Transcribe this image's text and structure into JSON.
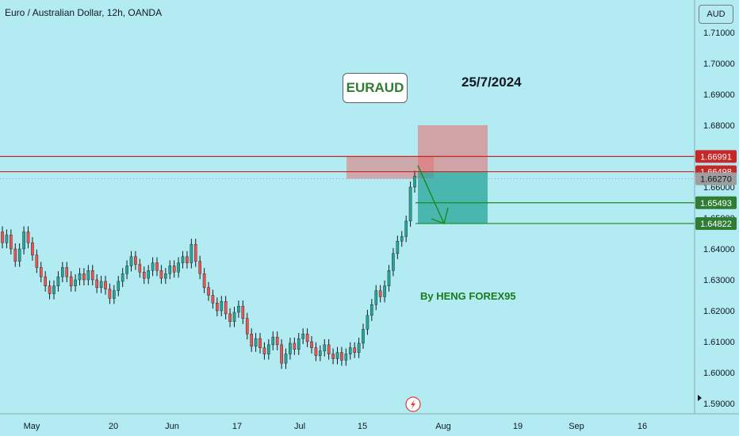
{
  "header": {
    "title": "Euro / Australian Dollar, 12h, OANDA"
  },
  "annotations": {
    "symbol_badge": "EURAUD",
    "date": "25/7/2024",
    "credit": "By HENG FOREX95"
  },
  "price_axis": {
    "currency": "AUD",
    "ticks": [
      "1.71000",
      "1.70000",
      "1.69000",
      "1.68000",
      "1.66000",
      "1.65000",
      "1.64000",
      "1.63000",
      "1.62000",
      "1.61000",
      "1.60000",
      "1.59000"
    ]
  },
  "time_axis": {
    "ticks": [
      "May",
      "20",
      "Jun",
      "17",
      "Jul",
      "15",
      "Aug",
      "19",
      "Sep",
      "16"
    ]
  },
  "colors": {
    "background": "#b2ebf2",
    "bull_candle": "#26a69a",
    "bear_candle": "#ef5350",
    "hline": "#c62828",
    "green_line": "#1b8a1e",
    "stop_zone": "#e57373",
    "target_zone": "#26a69a",
    "arrow": "#1b8a1e",
    "last_price": "#9e9e9e"
  },
  "chart_data": {
    "type": "candlestick",
    "symbol": "EURAUD",
    "timeframe": "12h",
    "source": "OANDA",
    "ylim": [
      1.5875,
      1.7175
    ],
    "candles_open_close": [
      [
        1.6455,
        1.642
      ],
      [
        1.642,
        1.6445
      ],
      [
        1.6445,
        1.64
      ],
      [
        1.64,
        1.636
      ],
      [
        1.636,
        1.64
      ],
      [
        1.64,
        1.6455
      ],
      [
        1.6455,
        1.642
      ],
      [
        1.642,
        1.638
      ],
      [
        1.638,
        1.634
      ],
      [
        1.634,
        1.631
      ],
      [
        1.631,
        1.628
      ],
      [
        1.628,
        1.6255
      ],
      [
        1.6255,
        1.628
      ],
      [
        1.628,
        1.631
      ],
      [
        1.631,
        1.634
      ],
      [
        1.634,
        1.631
      ],
      [
        1.631,
        1.628
      ],
      [
        1.628,
        1.63
      ],
      [
        1.63,
        1.632
      ],
      [
        1.632,
        1.63
      ],
      [
        1.63,
        1.633
      ],
      [
        1.633,
        1.63
      ],
      [
        1.63,
        1.6275
      ],
      [
        1.6275,
        1.6295
      ],
      [
        1.6295,
        1.627
      ],
      [
        1.627,
        1.624
      ],
      [
        1.624,
        1.6265
      ],
      [
        1.6265,
        1.6295
      ],
      [
        1.6295,
        1.632
      ],
      [
        1.632,
        1.6345
      ],
      [
        1.6345,
        1.6375
      ],
      [
        1.6375,
        1.635
      ],
      [
        1.635,
        1.6325
      ],
      [
        1.6325,
        1.6305
      ],
      [
        1.6305,
        1.633
      ],
      [
        1.633,
        1.6355
      ],
      [
        1.6355,
        1.633
      ],
      [
        1.633,
        1.6305
      ],
      [
        1.6305,
        1.632
      ],
      [
        1.632,
        1.6345
      ],
      [
        1.6345,
        1.6325
      ],
      [
        1.6325,
        1.6355
      ],
      [
        1.6355,
        1.6375
      ],
      [
        1.6375,
        1.6355
      ],
      [
        1.6355,
        1.6415
      ],
      [
        1.6415,
        1.636
      ],
      [
        1.636,
        1.632
      ],
      [
        1.632,
        1.6275
      ],
      [
        1.6275,
        1.625
      ],
      [
        1.625,
        1.6225
      ],
      [
        1.6225,
        1.62
      ],
      [
        1.62,
        1.623
      ],
      [
        1.623,
        1.619
      ],
      [
        1.619,
        1.6165
      ],
      [
        1.6165,
        1.6195
      ],
      [
        1.6195,
        1.6215
      ],
      [
        1.6215,
        1.6175
      ],
      [
        1.6175,
        1.6125
      ],
      [
        1.6125,
        1.6085
      ],
      [
        1.6085,
        1.611
      ],
      [
        1.611,
        1.608
      ],
      [
        1.608,
        1.606
      ],
      [
        1.606,
        1.609
      ],
      [
        1.609,
        1.6115
      ],
      [
        1.6115,
        1.609
      ],
      [
        1.609,
        1.603
      ],
      [
        1.603,
        1.606
      ],
      [
        1.606,
        1.6095
      ],
      [
        1.6095,
        1.6075
      ],
      [
        1.6075,
        1.611
      ],
      [
        1.611,
        1.6125
      ],
      [
        1.6125,
        1.61
      ],
      [
        1.61,
        1.608
      ],
      [
        1.608,
        1.6055
      ],
      [
        1.6055,
        1.607
      ],
      [
        1.607,
        1.609
      ],
      [
        1.609,
        1.606
      ],
      [
        1.606,
        1.6045
      ],
      [
        1.6045,
        1.6065
      ],
      [
        1.6065,
        1.604
      ],
      [
        1.604,
        1.606
      ],
      [
        1.606,
        1.608
      ],
      [
        1.608,
        1.6065
      ],
      [
        1.6065,
        1.6095
      ],
      [
        1.6095,
        1.614
      ],
      [
        1.614,
        1.6185
      ],
      [
        1.6185,
        1.622
      ],
      [
        1.622,
        1.6265
      ],
      [
        1.6265,
        1.6245
      ],
      [
        1.6245,
        1.628
      ],
      [
        1.628,
        1.633
      ],
      [
        1.633,
        1.6385
      ],
      [
        1.6385,
        1.6425
      ],
      [
        1.6425,
        1.644
      ],
      [
        1.644,
        1.649
      ],
      [
        1.649,
        1.66
      ],
      [
        1.66,
        1.6635
      ]
    ],
    "horizontal_lines": [
      {
        "price": 1.66991,
        "label": "1.66991",
        "color": "red"
      },
      {
        "price": 1.66498,
        "label": "1.66498",
        "color": "red"
      },
      {
        "price": 1.65493,
        "label": "1.65493",
        "color": "green"
      },
      {
        "price": 1.64822,
        "label": "1.64822",
        "color": "green"
      }
    ],
    "last_price": {
      "price": 1.6627,
      "label": "1.66270"
    },
    "zones": [
      {
        "name": "resistance",
        "y_top": 1.67,
        "y_bottom": 1.6627
      },
      {
        "name": "stop",
        "y_top": 1.68,
        "y_bottom": 1.6649
      },
      {
        "name": "target",
        "y_top": 1.6649,
        "y_bottom": 1.6482
      }
    ],
    "arrow": {
      "from": 1.667,
      "to": 1.6482
    }
  }
}
